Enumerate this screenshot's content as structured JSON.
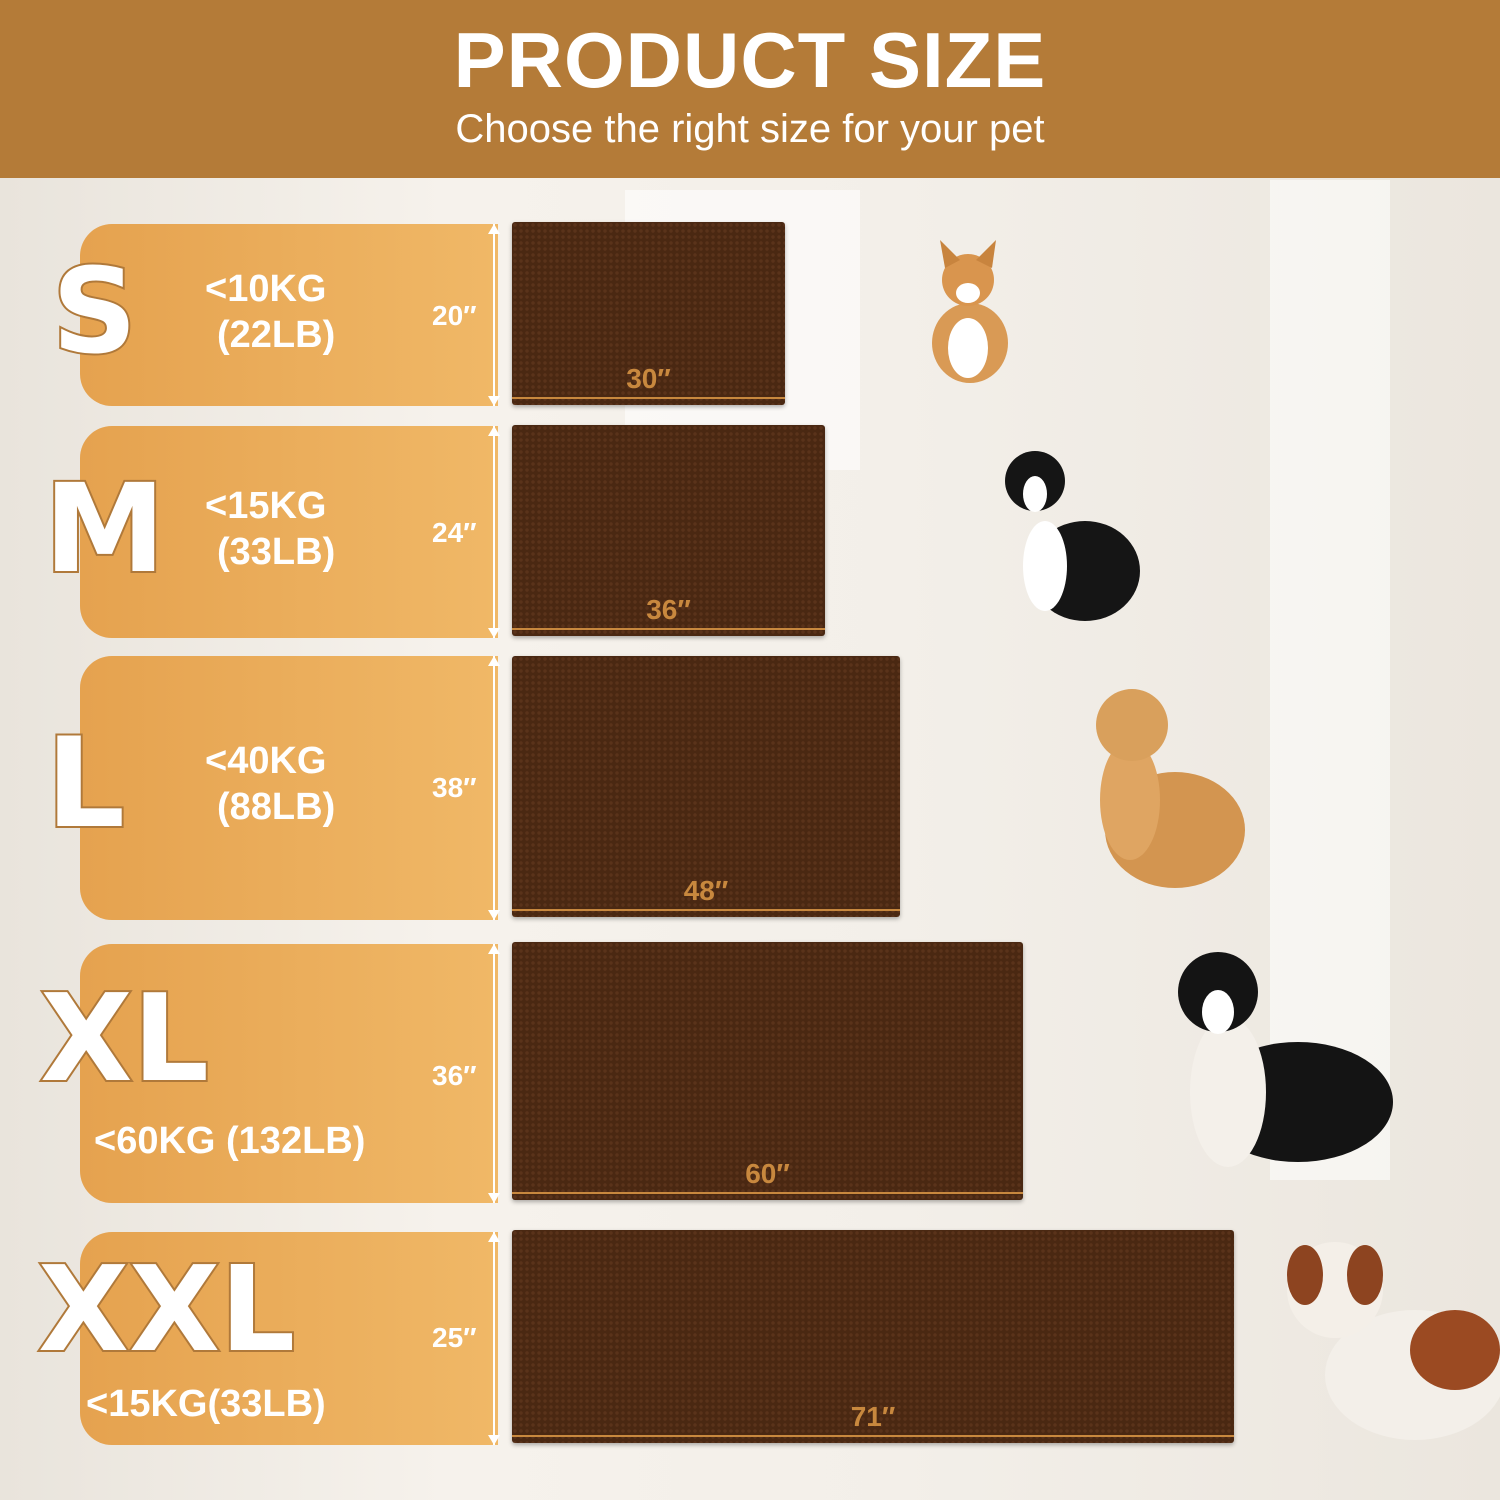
{
  "header": {
    "title": "PRODUCT SIZE",
    "subtitle": "Choose the right size for your pet"
  },
  "colors": {
    "header": "#b47b38",
    "panel": "#e9aa57",
    "mat": "#4a2812",
    "dimension": "#c8883e"
  },
  "sizes": [
    {
      "size": "S",
      "weight_kg": "<10KG",
      "weight_lb": "(22LB)",
      "height": "20″",
      "width": "30″",
      "dog": "corgi"
    },
    {
      "size": "M",
      "weight_kg": "<15KG",
      "weight_lb": "(33LB)",
      "height": "24″",
      "width": "36″",
      "dog": "border-collie"
    },
    {
      "size": "L",
      "weight_kg": "<40KG",
      "weight_lb": "(88LB)",
      "height": "38″",
      "width": "48″",
      "dog": "golden-retriever"
    },
    {
      "size": "XL",
      "weight": "<60KG (132LB)",
      "height": "36″",
      "width": "60″",
      "dog": "bernese-mountain-dog"
    },
    {
      "size": "XXL",
      "weight": "<15KG(33LB)",
      "height": "25″",
      "width": "71″",
      "dog": "saint-bernard"
    }
  ]
}
